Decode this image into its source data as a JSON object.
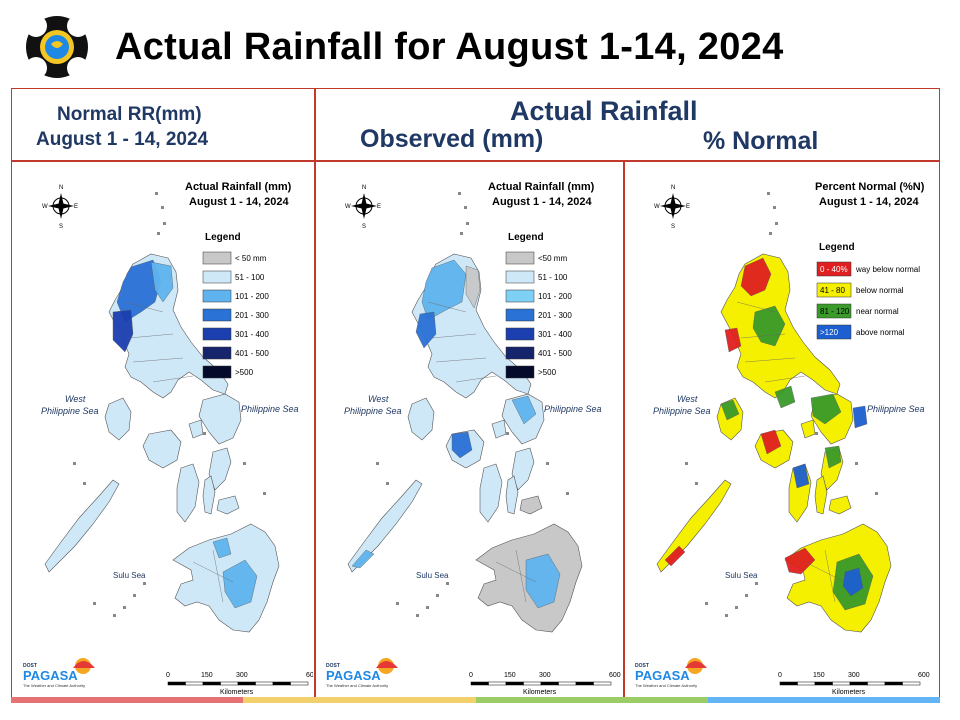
{
  "title": "Actual Rainfall for August 1-14, 2024",
  "headers": {
    "normal_line1": "Normal RR(mm)",
    "normal_line2": "August 1 - 14, 2024",
    "actual": "Actual Rainfall",
    "observed": "Observed (mm)",
    "percent": "% Normal"
  },
  "colors": {
    "frame": "#c0392b",
    "header_text": "#1f3864",
    "bottom_bar": [
      "#e57373",
      "#f2d06b",
      "#9ccc65",
      "#64b5f6"
    ]
  },
  "maps": [
    {
      "title_line1": "Actual Rainfall (mm)",
      "title_line2": "August 1 - 14, 2024",
      "legend_title": "Legend",
      "legend": [
        {
          "label": "< 50 mm",
          "color": "#c8c8c8"
        },
        {
          "label": "51 - 100",
          "color": "#cfe8f8"
        },
        {
          "label": "101 - 200",
          "color": "#5fb4ef"
        },
        {
          "label": "201 - 300",
          "color": "#2a72d6"
        },
        {
          "label": "301 - 400",
          "color": "#1c3fb0"
        },
        {
          "label": "401 - 500",
          "color": "#15246b"
        },
        {
          "label": ">500",
          "color": "#050a2a"
        }
      ],
      "sea_west_1": "West",
      "sea_west_2": "Philippine Sea",
      "sea_east": "Philippine Sea",
      "sea_south": "Sulu Sea",
      "scale": [
        "0",
        "150",
        "300",
        "600"
      ],
      "scale_unit": "Kilometers",
      "compass": [
        "N",
        "W",
        "E",
        "S"
      ],
      "logo_small": "DOST",
      "logo_name": "PAGASA",
      "logo_tag": "The Weather and Climate Authority"
    },
    {
      "title_line1": "Actual Rainfall (mm)",
      "title_line2": "August 1 - 14, 2024",
      "legend_title": "Legend",
      "legend": [
        {
          "label": "<50 mm",
          "color": "#c8c8c8"
        },
        {
          "label": "51 - 100",
          "color": "#cfe8f8"
        },
        {
          "label": "101 - 200",
          "color": "#7fd0f5"
        },
        {
          "label": "201 - 300",
          "color": "#2a72d6"
        },
        {
          "label": "301 - 400",
          "color": "#1c3fb0"
        },
        {
          "label": "401 - 500",
          "color": "#15246b"
        },
        {
          "label": ">500",
          "color": "#050a2a"
        }
      ],
      "sea_west_1": "West",
      "sea_west_2": "Philippine Sea",
      "sea_east": "Philippine Sea",
      "sea_south": "Sulu Sea",
      "scale": [
        "0",
        "150",
        "300",
        "600"
      ],
      "scale_unit": "Kilometers",
      "compass": [
        "N",
        "W",
        "E",
        "S"
      ],
      "logo_small": "DOST",
      "logo_name": "PAGASA",
      "logo_tag": "The Weather and Climate Authority"
    },
    {
      "title_line1": "Percent Normal (%N)",
      "title_line2": "August 1 - 14, 2024",
      "legend_title": "Legend",
      "legend": [
        {
          "label": "0 - 40%",
          "desc": "way below normal",
          "color": "#e02020",
          "text_color": "#ffffff"
        },
        {
          "label": "41 - 80",
          "desc": "below normal",
          "color": "#f5f000",
          "text_color": "#000000"
        },
        {
          "label": "81 - 120",
          "desc": "near normal",
          "color": "#3a9a2a",
          "text_color": "#000000"
        },
        {
          "label": ">120",
          "desc": "above normal",
          "color": "#1d5fd0",
          "text_color": "#ffffff"
        }
      ],
      "sea_west_1": "West",
      "sea_west_2": "Philippine Sea",
      "sea_east": "Philippine Sea",
      "sea_south": "Sulu Sea",
      "scale": [
        "0",
        "150",
        "300",
        "600"
      ],
      "scale_unit": "Kilometers",
      "compass": [
        "N",
        "W",
        "E",
        "S"
      ],
      "logo_small": "DOST",
      "logo_name": "PAGASA",
      "logo_tag": "The Weather and Climate Authority"
    }
  ]
}
